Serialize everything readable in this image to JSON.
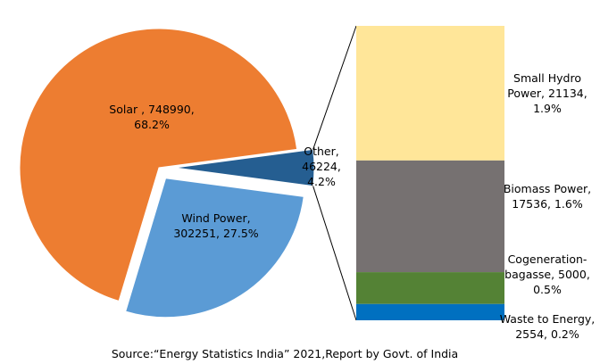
{
  "chart_data": {
    "type": "pie",
    "title": "",
    "slices": [
      {
        "name": "Solar",
        "value": 748990,
        "percent": "68.2%",
        "color": "#ED7D31",
        "label_lines": [
          "Solar , 748990,",
          "68.2%"
        ]
      },
      {
        "name": "Wind Power",
        "value": 302251,
        "percent": "27.5%",
        "color": "#5B9BD5",
        "label_lines": [
          "Wind Power,",
          "302251, 27.5%"
        ]
      },
      {
        "name": "Other",
        "value": 46224,
        "percent": "4.2%",
        "color": "#255E91",
        "label_lines": [
          "Other,",
          "46224,",
          "4.2%"
        ]
      }
    ],
    "breakdown": {
      "of": "Other",
      "type": "stacked-bar",
      "segments": [
        {
          "name": "Small Hydro Power",
          "value": 21134,
          "percent": "1.9%",
          "color": "#FFE699",
          "label_lines": [
            "Small Hydro",
            "Power, 21134,",
            "1.9%"
          ]
        },
        {
          "name": "Biomass Power",
          "value": 17536,
          "percent": "1.6%",
          "color": "#767171",
          "label_lines": [
            "Biomass Power,",
            "17536, 1.6%"
          ]
        },
        {
          "name": "Cogeneration-bagasse",
          "value": 5000,
          "percent": "0.5%",
          "color": "#548235",
          "label_lines": [
            "Cogeneration-",
            "bagasse, 5000,",
            "0.5%"
          ]
        },
        {
          "name": "Waste to Energy",
          "value": 2554,
          "percent": "0.2%",
          "color": "#0070C0",
          "label_lines": [
            "Waste to Energy,",
            "2554, 0.2%"
          ]
        }
      ]
    },
    "source": "Source:“Energy Statistics India” 2021,Report by Govt. of India"
  }
}
